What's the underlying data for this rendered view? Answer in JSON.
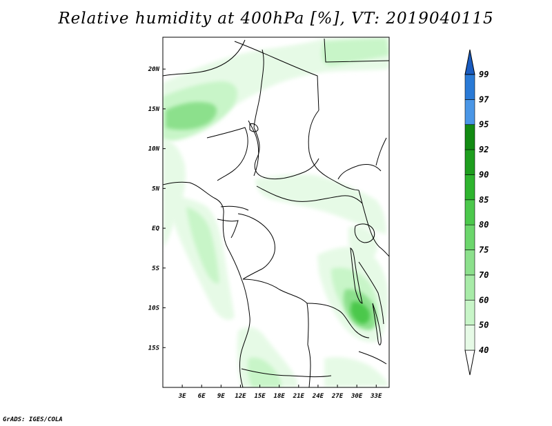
{
  "title": "Relative humidity at 400hPa [%], VT: 2019040115",
  "credit": "GrADS: IGES/COLA",
  "map": {
    "lon_range": [
      0,
      35
    ],
    "lat_range": [
      -20,
      24
    ],
    "x_ticks": [
      {
        "lon": 3,
        "label": "3E"
      },
      {
        "lon": 6,
        "label": "6E"
      },
      {
        "lon": 9,
        "label": "9E"
      },
      {
        "lon": 12,
        "label": "12E"
      },
      {
        "lon": 15,
        "label": "15E"
      },
      {
        "lon": 18,
        "label": "18E"
      },
      {
        "lon": 21,
        "label": "21E"
      },
      {
        "lon": 24,
        "label": "24E"
      },
      {
        "lon": 27,
        "label": "27E"
      },
      {
        "lon": 30,
        "label": "30E"
      },
      {
        "lon": 33,
        "label": "33E"
      }
    ],
    "y_ticks": [
      {
        "lat": 20,
        "label": "20N"
      },
      {
        "lat": 15,
        "label": "15N"
      },
      {
        "lat": 10,
        "label": "10N"
      },
      {
        "lat": 5,
        "label": "5N"
      },
      {
        "lat": 0,
        "label": "EQ"
      },
      {
        "lat": -5,
        "label": "5S"
      },
      {
        "lat": -10,
        "label": "10S"
      },
      {
        "lat": -15,
        "label": "15S"
      }
    ]
  },
  "colorbar": {
    "levels": [
      "40",
      "50",
      "60",
      "70",
      "75",
      "80",
      "85",
      "90",
      "92",
      "95",
      "97",
      "99"
    ],
    "colors": [
      "#e6fae6",
      "#c8f5c8",
      "#a8eba8",
      "#8ce08c",
      "#6cd66c",
      "#4cc84c",
      "#2eb42e",
      "#1e9e1e",
      "#128a12",
      "#4a96e6",
      "#2a7ad6",
      "#1a5cc0"
    ],
    "under_color": "#ffffff"
  },
  "colors": {
    "border": "#000000",
    "shade_light": "#e6fae6",
    "shade_mid": "#c8f5c8",
    "shade_strong": "#8ce08c",
    "shade_peak": "#4cc84c"
  }
}
